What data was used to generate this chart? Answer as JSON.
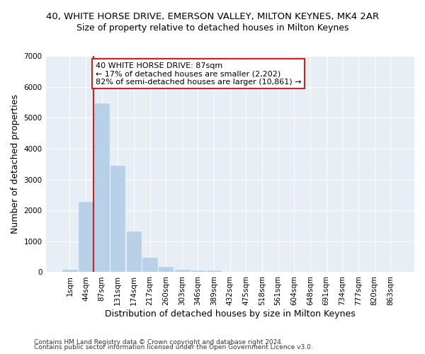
{
  "title": "40, WHITE HORSE DRIVE, EMERSON VALLEY, MILTON KEYNES, MK4 2AR",
  "subtitle": "Size of property relative to detached houses in Milton Keynes",
  "xlabel": "Distribution of detached houses by size in Milton Keynes",
  "ylabel": "Number of detached properties",
  "bar_color": "#b8d0e8",
  "bar_edge_color": "#b8d0e8",
  "highlight_color": "#cc2222",
  "categories": [
    "1sqm",
    "44sqm",
    "87sqm",
    "131sqm",
    "174sqm",
    "217sqm",
    "260sqm",
    "303sqm",
    "346sqm",
    "389sqm",
    "432sqm",
    "475sqm",
    "518sqm",
    "561sqm",
    "604sqm",
    "648sqm",
    "691sqm",
    "734sqm",
    "777sqm",
    "820sqm",
    "863sqm"
  ],
  "values": [
    80,
    2280,
    5470,
    3440,
    1310,
    480,
    160,
    90,
    55,
    50,
    0,
    0,
    0,
    0,
    0,
    0,
    0,
    0,
    0,
    0,
    0
  ],
  "ylim": [
    0,
    7000
  ],
  "yticks": [
    0,
    1000,
    2000,
    3000,
    4000,
    5000,
    6000,
    7000
  ],
  "annotation_title": "40 WHITE HORSE DRIVE: 87sqm",
  "annotation_line1": "← 17% of detached houses are smaller (2,202)",
  "annotation_line2": "82% of semi-detached houses are larger (10,861) →",
  "annotation_box_facecolor": "#ffffff",
  "annotation_box_edgecolor": "#cc2222",
  "red_line_x": 1.5,
  "footer1": "Contains HM Land Registry data © Crown copyright and database right 2024.",
  "footer2": "Contains public sector information licensed under the Open Government Licence v3.0.",
  "background_color": "#e8eef5",
  "grid_color": "#ffffff",
  "title_fontsize": 9.5,
  "subtitle_fontsize": 9,
  "axis_label_fontsize": 9,
  "tick_fontsize": 7.5,
  "annotation_fontsize": 8,
  "footer_fontsize": 6.5
}
